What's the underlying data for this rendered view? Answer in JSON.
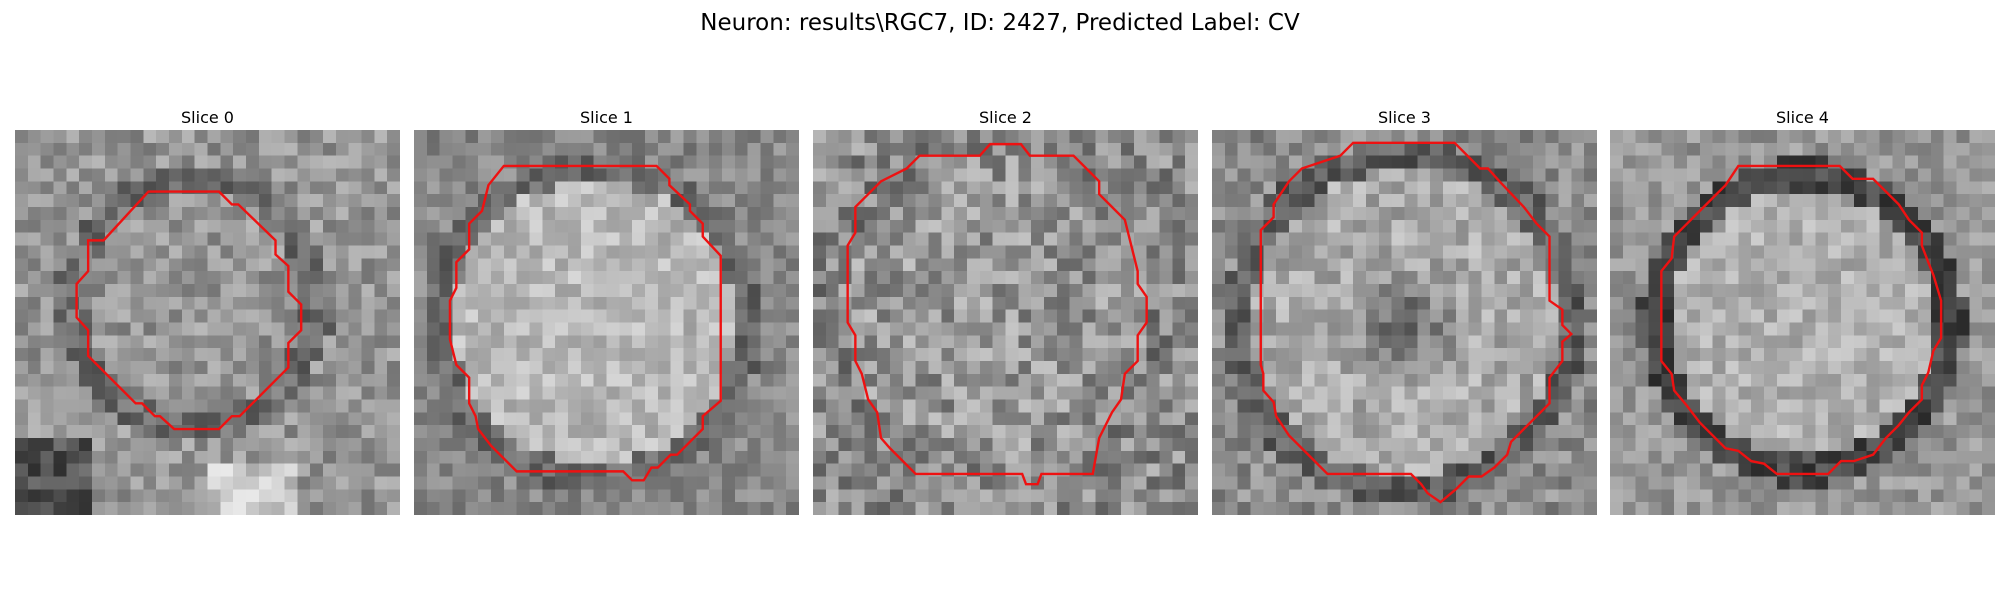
{
  "figure": {
    "title": "Neuron: results\\RGC7, ID: 2427, Predicted Label: CV",
    "roi_color": "#ee1111",
    "colormap": "gray"
  },
  "panels": [
    {
      "title": "Slice 0"
    },
    {
      "title": "Slice 1"
    },
    {
      "title": "Slice 2"
    },
    {
      "title": "Slice 3"
    },
    {
      "title": "Slice 4"
    }
  ]
}
